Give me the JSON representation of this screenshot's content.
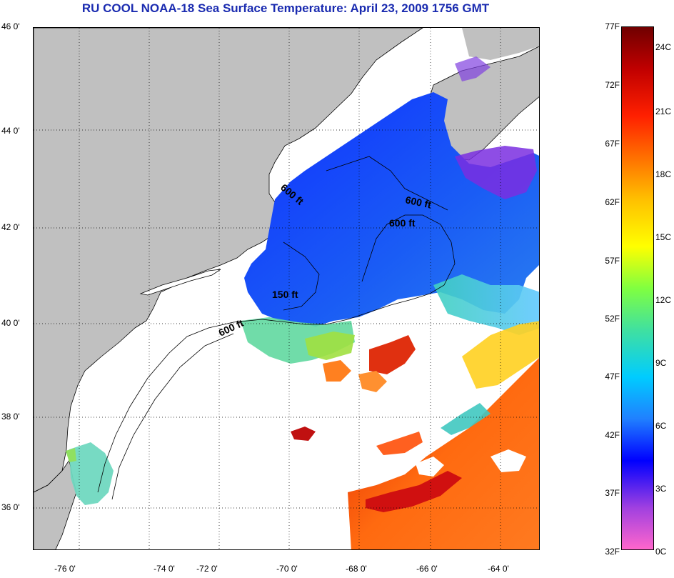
{
  "title": "RU COOL  NOAA-18  Sea Surface Temperature:  April 23, 2009 1756 GMT",
  "lat_labels": [
    "46 0'",
    "44 0'",
    "42 0'",
    "40 0'",
    "38 0'",
    "36 0'"
  ],
  "lon_labels": [
    "-76 0'",
    "-74 0'",
    "-72 0'",
    "-70 0'",
    "-68 0'",
    "-66 0'",
    "-64 0'"
  ],
  "contour_labels": [
    "600 ft",
    "600 ft",
    "600 ft",
    "150 ft",
    "600 ft"
  ],
  "colorbar": {
    "fahrenheit_labels": [
      "77F",
      "72F",
      "67F",
      "62F",
      "57F",
      "52F",
      "47F",
      "42F",
      "37F",
      "32F"
    ],
    "celsius_labels": [
      "24C",
      "21C",
      "18C",
      "15C",
      "12C",
      "9C",
      "6C",
      "3C",
      "0C"
    ],
    "colors": [
      "#ff66cc",
      "#a040e0",
      "#0000ff",
      "#2080ff",
      "#00ccff",
      "#40e0a0",
      "#80ff40",
      "#ffff00",
      "#ffc000",
      "#ff7000",
      "#ff2000",
      "#c00000",
      "#700000"
    ]
  },
  "colors": {
    "land": "#c0c0c0",
    "ocean_no_data": "#ffffff",
    "title": "#1a2bb0"
  }
}
